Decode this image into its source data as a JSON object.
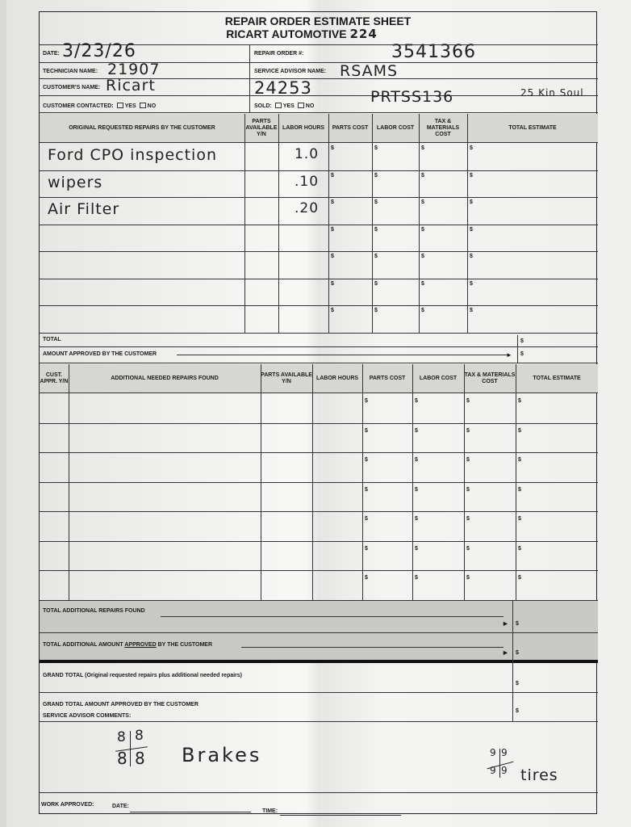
{
  "header": {
    "title": "REPAIR ORDER ESTIMATE SHEET",
    "company": "RICART AUTOMOTIVE",
    "company_note": "224"
  },
  "fields": {
    "date": {
      "label": "DATE:",
      "value": "3/23/26"
    },
    "technician": {
      "label": "TECHNICIAN NAME:",
      "value": "21907"
    },
    "customer": {
      "label": "CUSTOMER'S NAME:",
      "value": "Ricart"
    },
    "contacted": {
      "label": "CUSTOMER CONTACTED:",
      "yes": "YES",
      "no": "NO"
    },
    "repair_order": {
      "label": "REPAIR ORDER #:",
      "value": "3541366"
    },
    "service_advisor": {
      "label": "SERVICE ADVISOR NAME:",
      "value": "RSAMS"
    },
    "advisor_no": "24253",
    "vehicle": "PRTSS136",
    "note": "25 Kin Soul",
    "sold": {
      "label": "SOLD:",
      "yes": "YES",
      "no": "NO"
    }
  },
  "original": {
    "headers": [
      "ORIGINAL REQUESTED REPAIRS BY THE CUSTOMER",
      "PARTS AVAILABLE Y/N",
      "LABOR HOURS",
      "PARTS COST",
      "LABOR COST",
      "TAX & MATERIALS COST",
      "TOTAL ESTIMATE"
    ],
    "rows": [
      {
        "desc": "Ford CPO inspection",
        "hours": "1.0"
      },
      {
        "desc": "wipers",
        "hours": ".10"
      },
      {
        "desc": "Air Filter",
        "hours": ".20"
      },
      {
        "desc": "",
        "hours": ""
      },
      {
        "desc": "",
        "hours": ""
      },
      {
        "desc": "",
        "hours": ""
      },
      {
        "desc": "",
        "hours": ""
      }
    ],
    "currency": "$",
    "total_label": "TOTAL",
    "approved_label": "AMOUNT APPROVED BY THE CUSTOMER"
  },
  "additional": {
    "headers": [
      "CUST. APPR. Y/N",
      "ADDITIONAL NEEDED REPAIRS FOUND",
      "PARTS AVAILABLE Y/N",
      "LABOR HOURS",
      "PARTS COST",
      "LABOR COST",
      "TAX & MATERIALS COST",
      "TOTAL ESTIMATE"
    ],
    "row_count": 7
  },
  "totals": {
    "additional_found": "TOTAL ADDITIONAL REPAIRS FOUND",
    "additional_approved_prefix": "TOTAL ADDITIONAL AMOUNT ",
    "additional_approved_u": "APPROVED",
    "additional_approved_suffix": " BY THE CUSTOMER",
    "grand_total": "GRAND TOTAL",
    "grand_total_note": "(Original requested repairs plus additional needed repairs)",
    "grand_approved": "GRAND TOTAL AMOUNT APPROVED BY THE CUSTOMER"
  },
  "comments": {
    "label": "SERVICE ADVISOR COMMENTS:",
    "brakes_values": [
      "8",
      "8",
      "8",
      "8"
    ],
    "brakes": "Brakes",
    "tires_values": [
      "9",
      "9",
      "9",
      "9"
    ],
    "tires": "tires"
  },
  "footer": {
    "work_approved": "WORK APPROVED:",
    "date": "DATE:",
    "time": "TIME:"
  }
}
